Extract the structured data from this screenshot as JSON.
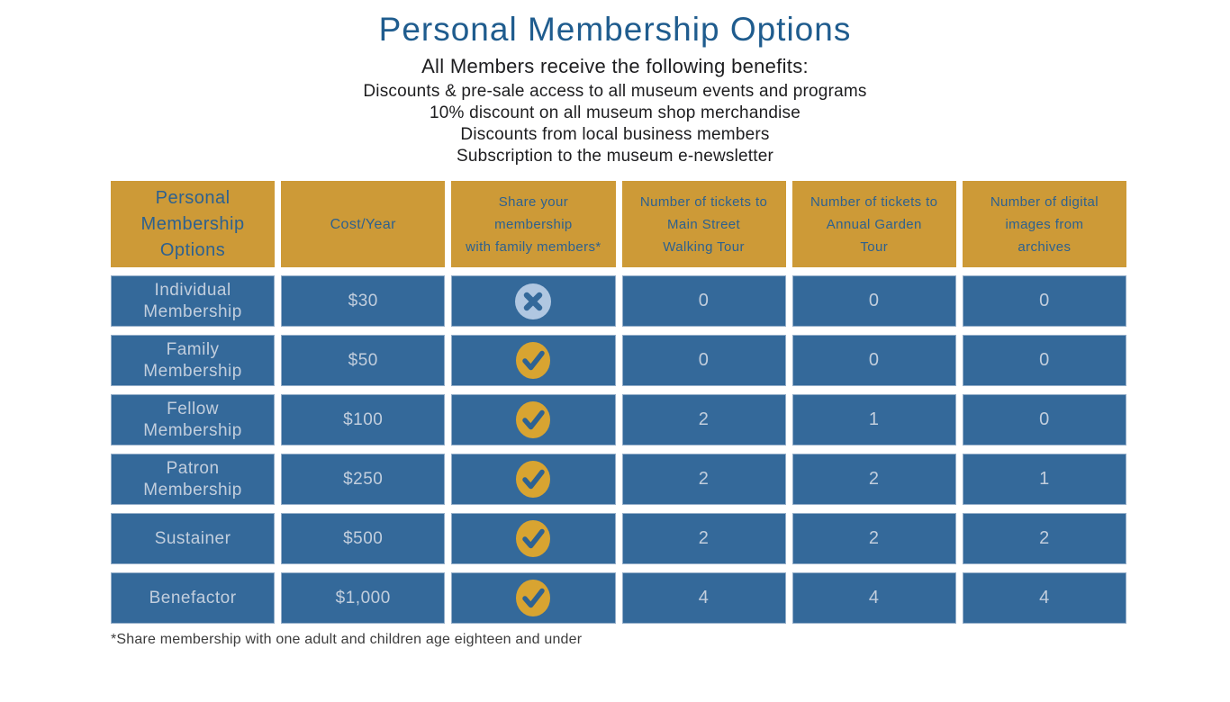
{
  "page": {
    "title": "Personal Membership Options",
    "subtitle": "All Members receive the following benefits:",
    "benefits": [
      "Discounts & pre-sale access to all museum events and programs",
      "10% discount on all museum shop merchandise",
      "Discounts from local business members",
      "Subscription to the museum e-newsletter"
    ],
    "footnote": "*Share membership with one adult and children age eighteen and under"
  },
  "colors": {
    "title_blue": "#1f5c8e",
    "header_gold": "#cd9a37",
    "header_text_blue": "#2d618f",
    "cell_blue": "#34699a",
    "cell_border_light": "#94aec9",
    "cell_text_light": "#c2cedd",
    "check_circle_gold": "#d8a431",
    "check_mark_blue": "#2e6292",
    "cross_circle_light_blue": "#b0c7e1",
    "cross_mark_blue": "#34699a",
    "body_text": "#1d1d1f"
  },
  "icons": {
    "share_allowed": "check-icon",
    "share_not_allowed": "cross-icon"
  },
  "table": {
    "columns": [
      {
        "id": "membership",
        "label": "Personal Membership Options",
        "lines": [
          "Personal",
          "Membership",
          "Options"
        ]
      },
      {
        "id": "cost",
        "label": "Cost/Year",
        "lines": [
          "Cost/Year"
        ]
      },
      {
        "id": "share",
        "label": "Share your membership with family members*",
        "lines": [
          "Share your",
          "membership",
          "with family members*"
        ]
      },
      {
        "id": "main-street-tour",
        "label": "Number of tickets to Main Street Walking Tour",
        "lines": [
          "Number of tickets to",
          "Main Street",
          "Walking Tour"
        ]
      },
      {
        "id": "garden-tour",
        "label": "Number of tickets to Annual Garden Tour",
        "lines": [
          "Number of tickets to",
          "Annual Garden",
          "Tour"
        ]
      },
      {
        "id": "digital-images",
        "label": "Number of digital images from archives",
        "lines": [
          "Number of digital",
          "images from",
          "archives"
        ]
      }
    ],
    "rows": [
      {
        "name": "Individual Membership",
        "cost": "$30",
        "share_with_family": false,
        "tickets_main_street": "0",
        "tickets_garden_tour": "0",
        "digital_images": "0"
      },
      {
        "name": "Family Membership",
        "cost": "$50",
        "share_with_family": true,
        "tickets_main_street": "0",
        "tickets_garden_tour": "0",
        "digital_images": "0"
      },
      {
        "name": "Fellow Membership",
        "cost": "$100",
        "share_with_family": true,
        "tickets_main_street": "2",
        "tickets_garden_tour": "1",
        "digital_images": "0"
      },
      {
        "name": "Patron Membership",
        "cost": "$250",
        "share_with_family": true,
        "tickets_main_street": "2",
        "tickets_garden_tour": "2",
        "digital_images": "1"
      },
      {
        "name": "Sustainer",
        "cost": "$500",
        "share_with_family": true,
        "tickets_main_street": "2",
        "tickets_garden_tour": "2",
        "digital_images": "2"
      },
      {
        "name": "Benefactor",
        "cost": "$1,000",
        "share_with_family": true,
        "tickets_main_street": "4",
        "tickets_garden_tour": "4",
        "digital_images": "4"
      }
    ]
  }
}
